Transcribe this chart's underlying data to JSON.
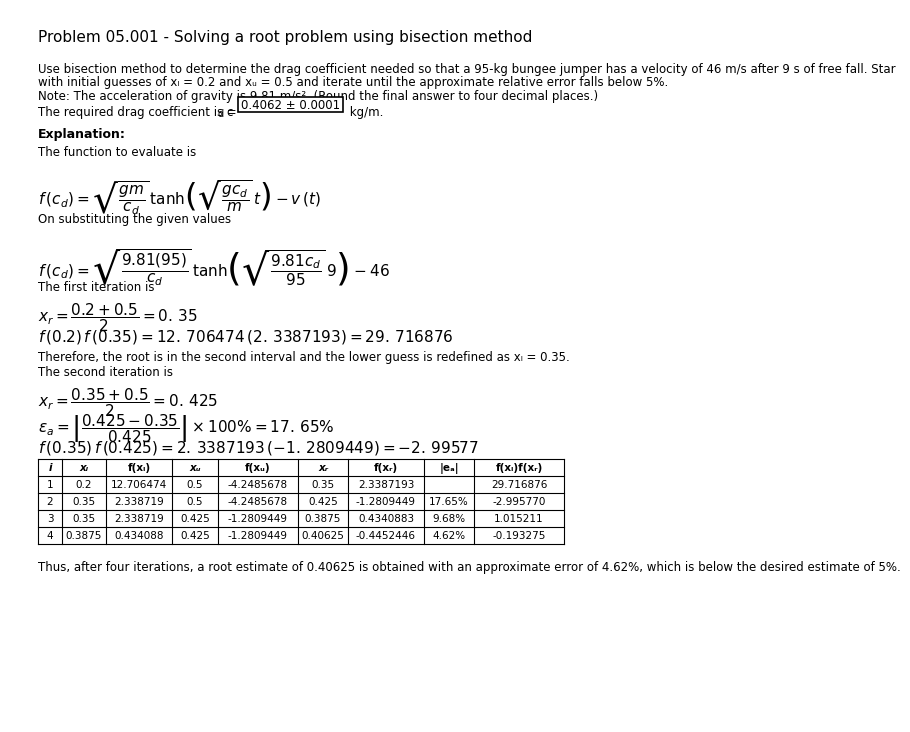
{
  "title": "Problem 05.001 - Solving a root problem using bisection method",
  "bg_color": "#ffffff",
  "paragraph1": "Use bisection method to determine the drag coefficient needed so that a 95-kg bungee jumper has a velocity of 46 m/s after 9 s of free fall. Star",
  "paragraph1b": "with initial guesses of xₗ = 0.2 and xᵤ = 0.5 and iterate until the approximate relative error falls below 5%.",
  "paragraph2": "Note: The acceleration of gravity is 9.81 m/s². (Round the final answer to four decimal places.)",
  "answer_box": "0.4062 ± 0.0001",
  "explanation_label": "Explanation:",
  "func_intro": "The function to evaluate is",
  "subst_intro": "On substituting the given values",
  "iter1_intro": "The first iteration is",
  "iter1_note": "Therefore, the root is in the second interval and the lower guess is redefined as xₗ = 0.35.",
  "iter2_intro": "The second iteration is",
  "table_headers": [
    "i",
    "xₗ",
    "f(xₗ)",
    "xᵤ",
    "f(xᵤ)",
    "xᵣ",
    "f(xᵣ)",
    "|eₐ|",
    "f(xₗ)f(xᵣ)"
  ],
  "table_data": [
    [
      "1",
      "0.2",
      "12.706474",
      "0.5",
      "-4.2485678",
      "0.35",
      "2.3387193",
      "",
      "29.716876"
    ],
    [
      "2",
      "0.35",
      "2.338719",
      "0.5",
      "-4.2485678",
      "0.425",
      "-1.2809449",
      "17.65%",
      "-2.995770"
    ],
    [
      "3",
      "0.35",
      "2.338719",
      "0.425",
      "-1.2809449",
      "0.3875",
      "0.4340883",
      "9.68%",
      "1.015211"
    ],
    [
      "4",
      "0.3875",
      "0.434088",
      "0.425",
      "-1.2809449",
      "0.40625",
      "-0.4452446",
      "4.62%",
      "-0.193275"
    ]
  ],
  "conclusion": "Thus, after four iterations, a root estimate of 0.40625 is obtained with an approximate error of 4.62%, which is below the desired estimate of 5%."
}
